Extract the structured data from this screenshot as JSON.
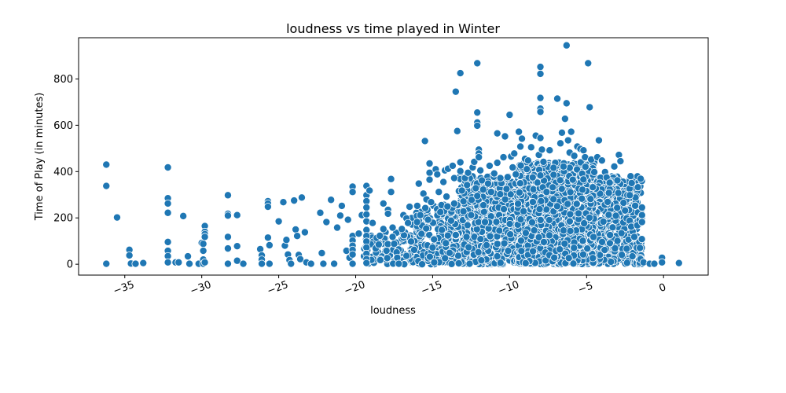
{
  "chart_data": {
    "type": "scatter",
    "title": "loudness vs time played in Winter",
    "xlabel": "loudness",
    "ylabel": "Time of Play (in minutes)",
    "xlim": [
      -38.0,
      2.9
    ],
    "ylim": [
      -47,
      978
    ],
    "xticks": [
      -35,
      -30,
      -25,
      -20,
      -15,
      -10,
      -5,
      0
    ],
    "xtick_labels": [
      "−35",
      "−30",
      "−25",
      "−20",
      "−15",
      "−10",
      "−5",
      "0"
    ],
    "yticks": [
      0,
      200,
      400,
      600,
      800
    ],
    "ytick_labels": [
      "0",
      "200",
      "400",
      "600",
      "800"
    ],
    "grid": false,
    "marker_color": "#1f77b4",
    "points": [
      [
        -36.2,
        430
      ],
      [
        -36.2,
        338
      ],
      [
        -36.2,
        2
      ],
      [
        -35.5,
        202
      ],
      [
        -34.7,
        62
      ],
      [
        -34.7,
        38
      ],
      [
        -34.6,
        3
      ],
      [
        -34.3,
        2
      ],
      [
        -33.8,
        5
      ],
      [
        -32.2,
        418
      ],
      [
        -32.2,
        285
      ],
      [
        -32.2,
        262
      ],
      [
        -32.2,
        222
      ],
      [
        -32.2,
        96
      ],
      [
        -32.2,
        58
      ],
      [
        -32.2,
        35
      ],
      [
        -32.2,
        8
      ],
      [
        -31.7,
        8
      ],
      [
        -31.5,
        8
      ],
      [
        -31.2,
        208
      ],
      [
        -30.9,
        34
      ],
      [
        -30.8,
        2
      ],
      [
        -30.2,
        2
      ],
      [
        -30.0,
        92
      ],
      [
        -29.9,
        88
      ],
      [
        -29.9,
        58
      ],
      [
        -29.9,
        20
      ],
      [
        -29.9,
        2
      ],
      [
        -29.8,
        165
      ],
      [
        -29.8,
        140
      ],
      [
        -29.8,
        130
      ],
      [
        -29.8,
        118
      ],
      [
        -29.8,
        8
      ],
      [
        -28.3,
        298
      ],
      [
        -28.3,
        218
      ],
      [
        -28.3,
        210
      ],
      [
        -28.3,
        118
      ],
      [
        -28.3,
        68
      ],
      [
        -28.3,
        2
      ],
      [
        -27.7,
        212
      ],
      [
        -27.7,
        78
      ],
      [
        -27.7,
        15
      ],
      [
        -27.3,
        2
      ],
      [
        -26.2,
        65
      ],
      [
        -26.1,
        38
      ],
      [
        -26.1,
        20
      ],
      [
        -26.1,
        2
      ],
      [
        -25.7,
        272
      ],
      [
        -25.7,
        262
      ],
      [
        -25.7,
        248
      ],
      [
        -25.7,
        115
      ],
      [
        -25.6,
        82
      ],
      [
        -25.6,
        2
      ],
      [
        -25.0,
        185
      ],
      [
        -24.7,
        268
      ],
      [
        -24.6,
        80
      ],
      [
        -24.5,
        105
      ],
      [
        -24.4,
        42
      ],
      [
        -24.3,
        18
      ],
      [
        -24.2,
        2
      ],
      [
        -24.0,
        275
      ],
      [
        -23.9,
        150
      ],
      [
        -23.8,
        122
      ],
      [
        -23.7,
        40
      ],
      [
        -23.6,
        22
      ],
      [
        -23.5,
        288
      ],
      [
        -23.3,
        138
      ],
      [
        -23.2,
        8
      ],
      [
        -22.9,
        2
      ],
      [
        -22.3,
        222
      ],
      [
        -22.2,
        48
      ],
      [
        -22.1,
        2
      ],
      [
        -21.9,
        182
      ],
      [
        -21.6,
        278
      ],
      [
        -21.4,
        2
      ],
      [
        -21.2,
        158
      ],
      [
        -21.0,
        210
      ],
      [
        -20.9,
        252
      ],
      [
        -20.6,
        58
      ],
      [
        -20.5,
        192
      ],
      [
        -20.4,
        28
      ],
      [
        -20.2,
        335
      ],
      [
        -20.2,
        312
      ],
      [
        -20.2,
        122
      ],
      [
        -20.2,
        102
      ],
      [
        -20.2,
        80
      ],
      [
        -20.2,
        62
      ],
      [
        -20.2,
        42
      ],
      [
        -20.2,
        2
      ],
      [
        -19.8,
        132
      ],
      [
        -19.6,
        212
      ],
      [
        -19.3,
        338
      ],
      [
        -19.3,
        298
      ],
      [
        -19.3,
        272
      ],
      [
        -19.3,
        245
      ],
      [
        -19.3,
        215
      ],
      [
        -19.3,
        185
      ],
      [
        -19.3,
        148
      ],
      [
        -19.3,
        122
      ],
      [
        -19.3,
        98
      ],
      [
        -19.3,
        72
      ],
      [
        -19.3,
        45
      ],
      [
        -19.3,
        22
      ],
      [
        -19.3,
        5
      ],
      [
        -19.1,
        318
      ],
      [
        -18.9,
        178
      ],
      [
        -18.7,
        68
      ],
      [
        -18.5,
        85
      ],
      [
        -18.4,
        18
      ],
      [
        -18.2,
        262
      ],
      [
        -18.2,
        152
      ],
      [
        -18.0,
        58
      ],
      [
        -17.9,
        235
      ],
      [
        -17.9,
        218
      ],
      [
        -17.7,
        368
      ],
      [
        -17.7,
        312
      ],
      [
        -17.6,
        158
      ],
      [
        -17.6,
        118
      ],
      [
        -17.5,
        88
      ],
      [
        -17.3,
        28
      ],
      [
        -17.2,
        2
      ],
      [
        -17.0,
        152
      ],
      [
        -16.9,
        212
      ],
      [
        -16.7,
        198
      ],
      [
        -16.6,
        178
      ],
      [
        -16.5,
        248
      ],
      [
        -16.4,
        98
      ],
      [
        -16.2,
        62
      ],
      [
        -16.0,
        252
      ],
      [
        -15.9,
        348
      ],
      [
        -15.8,
        212
      ],
      [
        -15.6,
        305
      ],
      [
        -15.5,
        532
      ],
      [
        -15.4,
        280
      ],
      [
        -15.3,
        192
      ],
      [
        -15.2,
        435
      ],
      [
        -15.2,
        395
      ],
      [
        -15.2,
        365
      ],
      [
        -15.1,
        268
      ],
      [
        -15.0,
        72
      ],
      [
        -14.9,
        8
      ],
      [
        -14.8,
        410
      ],
      [
        -14.7,
        388
      ],
      [
        -14.6,
        312
      ],
      [
        -14.5,
        225
      ],
      [
        -14.4,
        148
      ],
      [
        -14.3,
        355
      ],
      [
        -14.2,
        405
      ],
      [
        -14.1,
        292
      ],
      [
        -14.0,
        412
      ],
      [
        -13.8,
        188
      ],
      [
        -13.7,
        425
      ],
      [
        -13.6,
        262
      ],
      [
        -13.6,
        372
      ],
      [
        -13.5,
        745
      ],
      [
        -13.4,
        575
      ],
      [
        -13.2,
        440
      ],
      [
        -13.2,
        402
      ],
      [
        -13.2,
        825
      ],
      [
        -13.1,
        318
      ],
      [
        -13.0,
        228
      ],
      [
        -12.9,
        372
      ],
      [
        -12.8,
        118
      ],
      [
        -12.7,
        395
      ],
      [
        -12.6,
        2
      ],
      [
        -12.5,
        212
      ],
      [
        -12.4,
        418
      ],
      [
        -12.3,
        442
      ],
      [
        -12.2,
        328
      ],
      [
        -12.1,
        295
      ],
      [
        -12.1,
        868
      ],
      [
        -12.1,
        655
      ],
      [
        -12.1,
        612
      ],
      [
        -12.1,
        598
      ],
      [
        -12.0,
        495
      ],
      [
        -12.0,
        478
      ],
      [
        -12.0,
        462
      ],
      [
        -11.9,
        405
      ],
      [
        -11.8,
        362
      ],
      [
        -11.7,
        255
      ],
      [
        -11.6,
        182
      ],
      [
        -11.5,
        82
      ],
      [
        -11.4,
        348
      ],
      [
        -11.3,
        425
      ],
      [
        -11.2,
        312
      ],
      [
        -11.0,
        392
      ],
      [
        -10.8,
        565
      ],
      [
        -10.8,
        438
      ],
      [
        -10.6,
        372
      ],
      [
        -10.4,
        462
      ],
      [
        -10.3,
        552
      ],
      [
        -10.2,
        325
      ],
      [
        -10.0,
        645
      ],
      [
        -9.9,
        465
      ],
      [
        -9.8,
        418
      ],
      [
        -9.7,
        478
      ],
      [
        -9.6,
        388
      ],
      [
        -9.4,
        572
      ],
      [
        -9.3,
        508
      ],
      [
        -9.2,
        542
      ],
      [
        -9.0,
        455
      ],
      [
        -8.8,
        448
      ],
      [
        -8.6,
        505
      ],
      [
        -8.5,
        375
      ],
      [
        -8.3,
        555
      ],
      [
        -8.1,
        472
      ],
      [
        -8.0,
        852
      ],
      [
        -8.0,
        822
      ],
      [
        -8.0,
        718
      ],
      [
        -8.0,
        672
      ],
      [
        -8.0,
        658
      ],
      [
        -8.0,
        545
      ],
      [
        -7.9,
        495
      ],
      [
        -7.8,
        442
      ],
      [
        -7.6,
        312
      ],
      [
        -7.4,
        492
      ],
      [
        -7.2,
        332
      ],
      [
        -6.9,
        715
      ],
      [
        -6.7,
        522
      ],
      [
        -6.6,
        568
      ],
      [
        -6.5,
        422
      ],
      [
        -6.4,
        628
      ],
      [
        -6.3,
        945
      ],
      [
        -6.3,
        695
      ],
      [
        -6.2,
        535
      ],
      [
        -6.1,
        482
      ],
      [
        -6.0,
        572
      ],
      [
        -5.8,
        468
      ],
      [
        -5.6,
        508
      ],
      [
        -5.4,
        498
      ],
      [
        -5.2,
        492
      ],
      [
        -5.1,
        462
      ],
      [
        -4.9,
        868
      ],
      [
        -4.8,
        678
      ],
      [
        -4.7,
        452
      ],
      [
        -4.5,
        398
      ],
      [
        -4.3,
        462
      ],
      [
        -4.2,
        535
      ],
      [
        -4.0,
        448
      ],
      [
        -3.8,
        398
      ],
      [
        -3.7,
        375
      ],
      [
        -3.5,
        352
      ],
      [
        -3.2,
        422
      ],
      [
        -3.0,
        362
      ],
      [
        -2.9,
        472
      ],
      [
        -2.8,
        445
      ],
      [
        -2.6,
        265
      ],
      [
        -2.5,
        232
      ],
      [
        -2.4,
        198
      ],
      [
        -2.2,
        188
      ],
      [
        -2.1,
        162
      ],
      [
        -1.9,
        118
      ],
      [
        -1.7,
        168
      ],
      [
        -1.4,
        245
      ],
      [
        -1.4,
        212
      ],
      [
        -1.4,
        182
      ],
      [
        -1.5,
        22
      ],
      [
        -1.3,
        8
      ],
      [
        -0.9,
        2
      ],
      [
        -0.6,
        2
      ],
      [
        -0.1,
        28
      ],
      [
        -0.1,
        8
      ],
      [
        1.0,
        5
      ]
    ],
    "dense_regions": [
      {
        "x": [
          -13.3,
          -1.4
        ],
        "y": [
          0,
          380
        ],
        "count": 2000
      },
      {
        "x": [
          -9.5,
          -4.5
        ],
        "y": [
          0,
          440
        ],
        "count": 1200
      },
      {
        "x": [
          -16.5,
          -13.3
        ],
        "y": [
          0,
          260
        ],
        "count": 250
      },
      {
        "x": [
          -19.5,
          -16.5
        ],
        "y": [
          0,
          140
        ],
        "count": 100
      }
    ]
  }
}
